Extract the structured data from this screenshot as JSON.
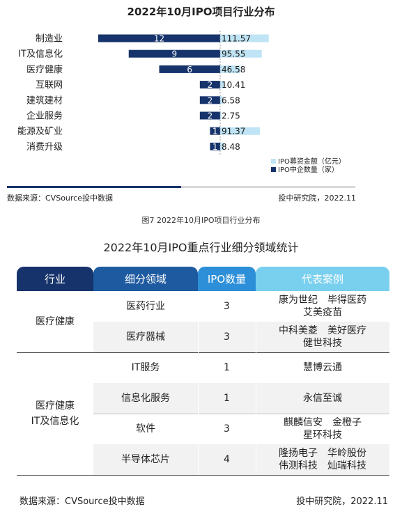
{
  "chart_data": [
    {
      "type": "bar",
      "title": "2022年10月IPO项目行业分布",
      "categories": [
        "制造业",
        "IT及信息化",
        "医疗健康",
        "互联网",
        "建筑建材",
        "企业服务",
        "能源及矿业",
        "消费升级"
      ],
      "series": [
        {
          "name": "IPO中企数量（家）",
          "values": [
            12,
            9,
            6,
            2,
            2,
            2,
            1,
            1
          ],
          "color": "#16336b",
          "direction": "left"
        },
        {
          "name": "IPO募资金额（亿元）",
          "values": [
            111.57,
            95.55,
            46.58,
            10.41,
            6.58,
            2.75,
            91.37,
            8.48
          ],
          "color": "#bfe4f5",
          "direction": "right"
        }
      ],
      "legend": "bottom-right",
      "grid": false,
      "source": "数据来源：CVSource投中数据",
      "org": "投中研究院，2022.11",
      "caption": "图7  2022年10月IPO项目行业分布"
    },
    {
      "type": "table",
      "title": "2022年10月IPO重点行业细分领域统计",
      "columns": [
        "行业",
        "细分领域",
        "IPO数量",
        "代表案例"
      ],
      "header_colors": [
        "#16336b",
        "#1e5aa0",
        "#2c8fd8",
        "#79cfee"
      ],
      "groups": [
        {
          "industry_lines": [
            "医疗健康"
          ],
          "rows": [
            {
              "segment": "医药行业",
              "count": "3",
              "cases": [
                "康为世纪　毕得医药",
                "艾美疫苗"
              ]
            },
            {
              "segment": "医疗器械",
              "count": "3",
              "cases": [
                "中科美菱　美好医疗",
                "健世科技"
              ]
            }
          ]
        },
        {
          "industry_lines": [
            "医疗健康",
            "IT及信息化"
          ],
          "rows": [
            {
              "segment": "IT服务",
              "count": "1",
              "cases": [
                "慧博云通"
              ]
            },
            {
              "segment": "信息化服务",
              "count": "1",
              "cases": [
                "永信至诚"
              ]
            },
            {
              "segment": "软件",
              "count": "3",
              "cases": [
                "麒麟信安　金橙子",
                "星环科技"
              ]
            },
            {
              "segment": "半导体芯片",
              "count": "4",
              "cases": [
                "隆扬电子　华岭股份",
                "伟测科技　灿瑞科技"
              ]
            }
          ]
        }
      ],
      "source": "数据来源：CVSource投中数据",
      "org": "投中研究院，2022.11"
    }
  ],
  "progress": {
    "fraction": 0.5
  }
}
